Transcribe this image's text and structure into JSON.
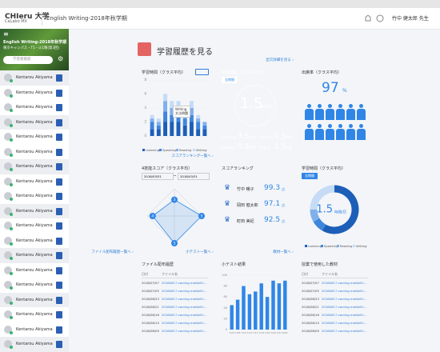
{
  "header": {
    "logo": "CHIeru 大学",
    "logo_sub": "CaLabo MX",
    "course": "English Writing-2018年秋学期",
    "user": "竹中 健太郎 先生"
  },
  "sidebar": {
    "course": "English Writing-2018年秋学期",
    "class": "東京キャンパス・T1・火1限(第3回)",
    "search_placeholder": "学習者検索",
    "students": [
      "Kentarou Akiyama",
      "Kentarou Akiyama",
      "Kentarou Akiyama",
      "Kentarou Akiyama",
      "Kentarou Akiyama",
      "Kentarou Akiyama",
      "Kentarou Akiyama",
      "Kentarou Akiyama",
      "Kentarou Akiyama",
      "Kentarou Akiyama",
      "Kentarou Akiyama",
      "Kentarou Akiyama",
      "Kentarou Akiyama",
      "Kentarou Akiyama",
      "Kentarou Akiyama",
      "Kentarou Akiyama",
      "Kentarou Akiyama",
      "Kentarou Akiyama",
      "Kentarou Akiyama"
    ]
  },
  "page_title": "学習履歴を見る",
  "study_chart": {
    "title": "学習時間（クラス平均）",
    "type": "bar",
    "stacked": true,
    "categories": [
      null,
      null,
      null,
      null,
      null,
      null,
      null,
      null,
      null
    ],
    "ylim": [
      0,
      8
    ],
    "yticks": [
      0,
      2,
      4,
      6,
      8
    ],
    "series": [
      {
        "name": "Listening",
        "color": "#1d5fb8",
        "values": [
          1,
          1,
          2,
          2,
          2,
          1.5,
          2,
          1,
          1
        ]
      },
      {
        "name": "Speaking",
        "color": "#3f86dd",
        "values": [
          1,
          0.5,
          1.5,
          1,
          1,
          1,
          1,
          1,
          0.5
        ]
      },
      {
        "name": "Reading",
        "color": "#7fb0ec",
        "values": [
          0.5,
          0.5,
          1.5,
          1,
          1,
          1,
          1,
          0.5,
          0.5
        ]
      },
      {
        "name": "Writing",
        "color": "#c5dbf6",
        "values": [
          0.5,
          0.5,
          1,
          1,
          1,
          0.5,
          1,
          0.5,
          0
        ]
      }
    ],
    "tooltip": {
      "title": "Writing",
      "body": "文法問題"
    }
  },
  "time_summary": {
    "title": "学習時間（クラス平均）",
    "period": "全期間",
    "value": 1.5,
    "unit_per_day": "時間/日",
    "unit": "時間",
    "skills": [
      {
        "name": "Listening",
        "value": 3.5
      },
      {
        "name": "Speaking",
        "value": 0.5
      },
      {
        "name": "Reading",
        "value": 0.5
      },
      {
        "name": "Writing",
        "value": 1.5
      }
    ]
  },
  "attendance": {
    "title": "出席率（クラス平均）",
    "value": 97,
    "unit": "%",
    "link": "出欠詳細を見る ›"
  },
  "skill_score": {
    "title": "4技能スコア（クラス平均）",
    "date_from": "2018/03/31",
    "separator": "~",
    "date_to": "2018/03/31",
    "type": "radar",
    "values": [
      3,
      5,
      5,
      4
    ],
    "rlim": [
      0,
      5
    ]
  },
  "ranking": {
    "title": "スコアランキング",
    "unit": "点",
    "rows": [
      {
        "name": "竹中 暢子",
        "score": 99.3
      },
      {
        "name": "岡田 健太郎",
        "score": 97.1
      },
      {
        "name": "町田 美紀",
        "score": 92.5
      }
    ],
    "link": "スコアランキング一覧へ ›"
  },
  "time_donut": {
    "title": "学習時間（クラス平均）",
    "period": "全期間",
    "type": "donut",
    "colors": [
      "#1d5fb8",
      "#3f86dd",
      "#7fb0ec",
      "#c5dbf6"
    ]
  },
  "files": {
    "title": "ファイル配布履歴",
    "columns": [
      "日付",
      "ファイル名"
    ],
    "rows": [
      [
        "2018/07/07",
        "20180617-coming-media01..."
      ],
      [
        "2018/07/05",
        "20180617-coming-media01..."
      ],
      [
        "2018/06/23",
        "20180617-coming-media01..."
      ],
      [
        "2018/06/21",
        "20180617-coming-media01..."
      ],
      [
        "2018/06/16",
        "20180617-coming-media01..."
      ],
      [
        "2018/06/14",
        "20180617-coming-media01..."
      ],
      [
        "2018/06/09",
        "20180617-coming-media01..."
      ]
    ],
    "link": "ファイル配布履歴一覧へ ›"
  },
  "quiz": {
    "title": "小テスト結果",
    "type": "bar",
    "color": "#2f86e6",
    "categories": [
      "7/03",
      "7/05",
      "7/10",
      "7/12",
      "7/17",
      "7/19",
      "7/24",
      "7/26",
      "7/31",
      "8/02"
    ],
    "values": [
      45,
      55,
      80,
      65,
      70,
      85,
      60,
      90,
      85,
      90
    ],
    "ylim": [
      0,
      100
    ],
    "yticks": [
      0,
      20,
      40,
      60,
      80,
      100
    ],
    "link": "小テスト一覧へ ›"
  },
  "materials": {
    "title": "授業で使用した教材",
    "columns": [
      "日付",
      "ファイル名"
    ],
    "rows": [
      [
        "2018/07/07",
        "20180617-coming-media01..."
      ],
      [
        "2018/07/05",
        "20180617-coming-media01..."
      ],
      [
        "2018/06/23",
        "20180617-coming-media01..."
      ],
      [
        "2018/06/21",
        "20180617-coming-media01..."
      ],
      [
        "2018/06/16",
        "20180617-coming-media01..."
      ],
      [
        "2018/06/14",
        "20180617-coming-media01..."
      ],
      [
        "2018/06/09",
        "20180617-coming-media01..."
      ]
    ],
    "link": "教材一覧へ ›"
  }
}
